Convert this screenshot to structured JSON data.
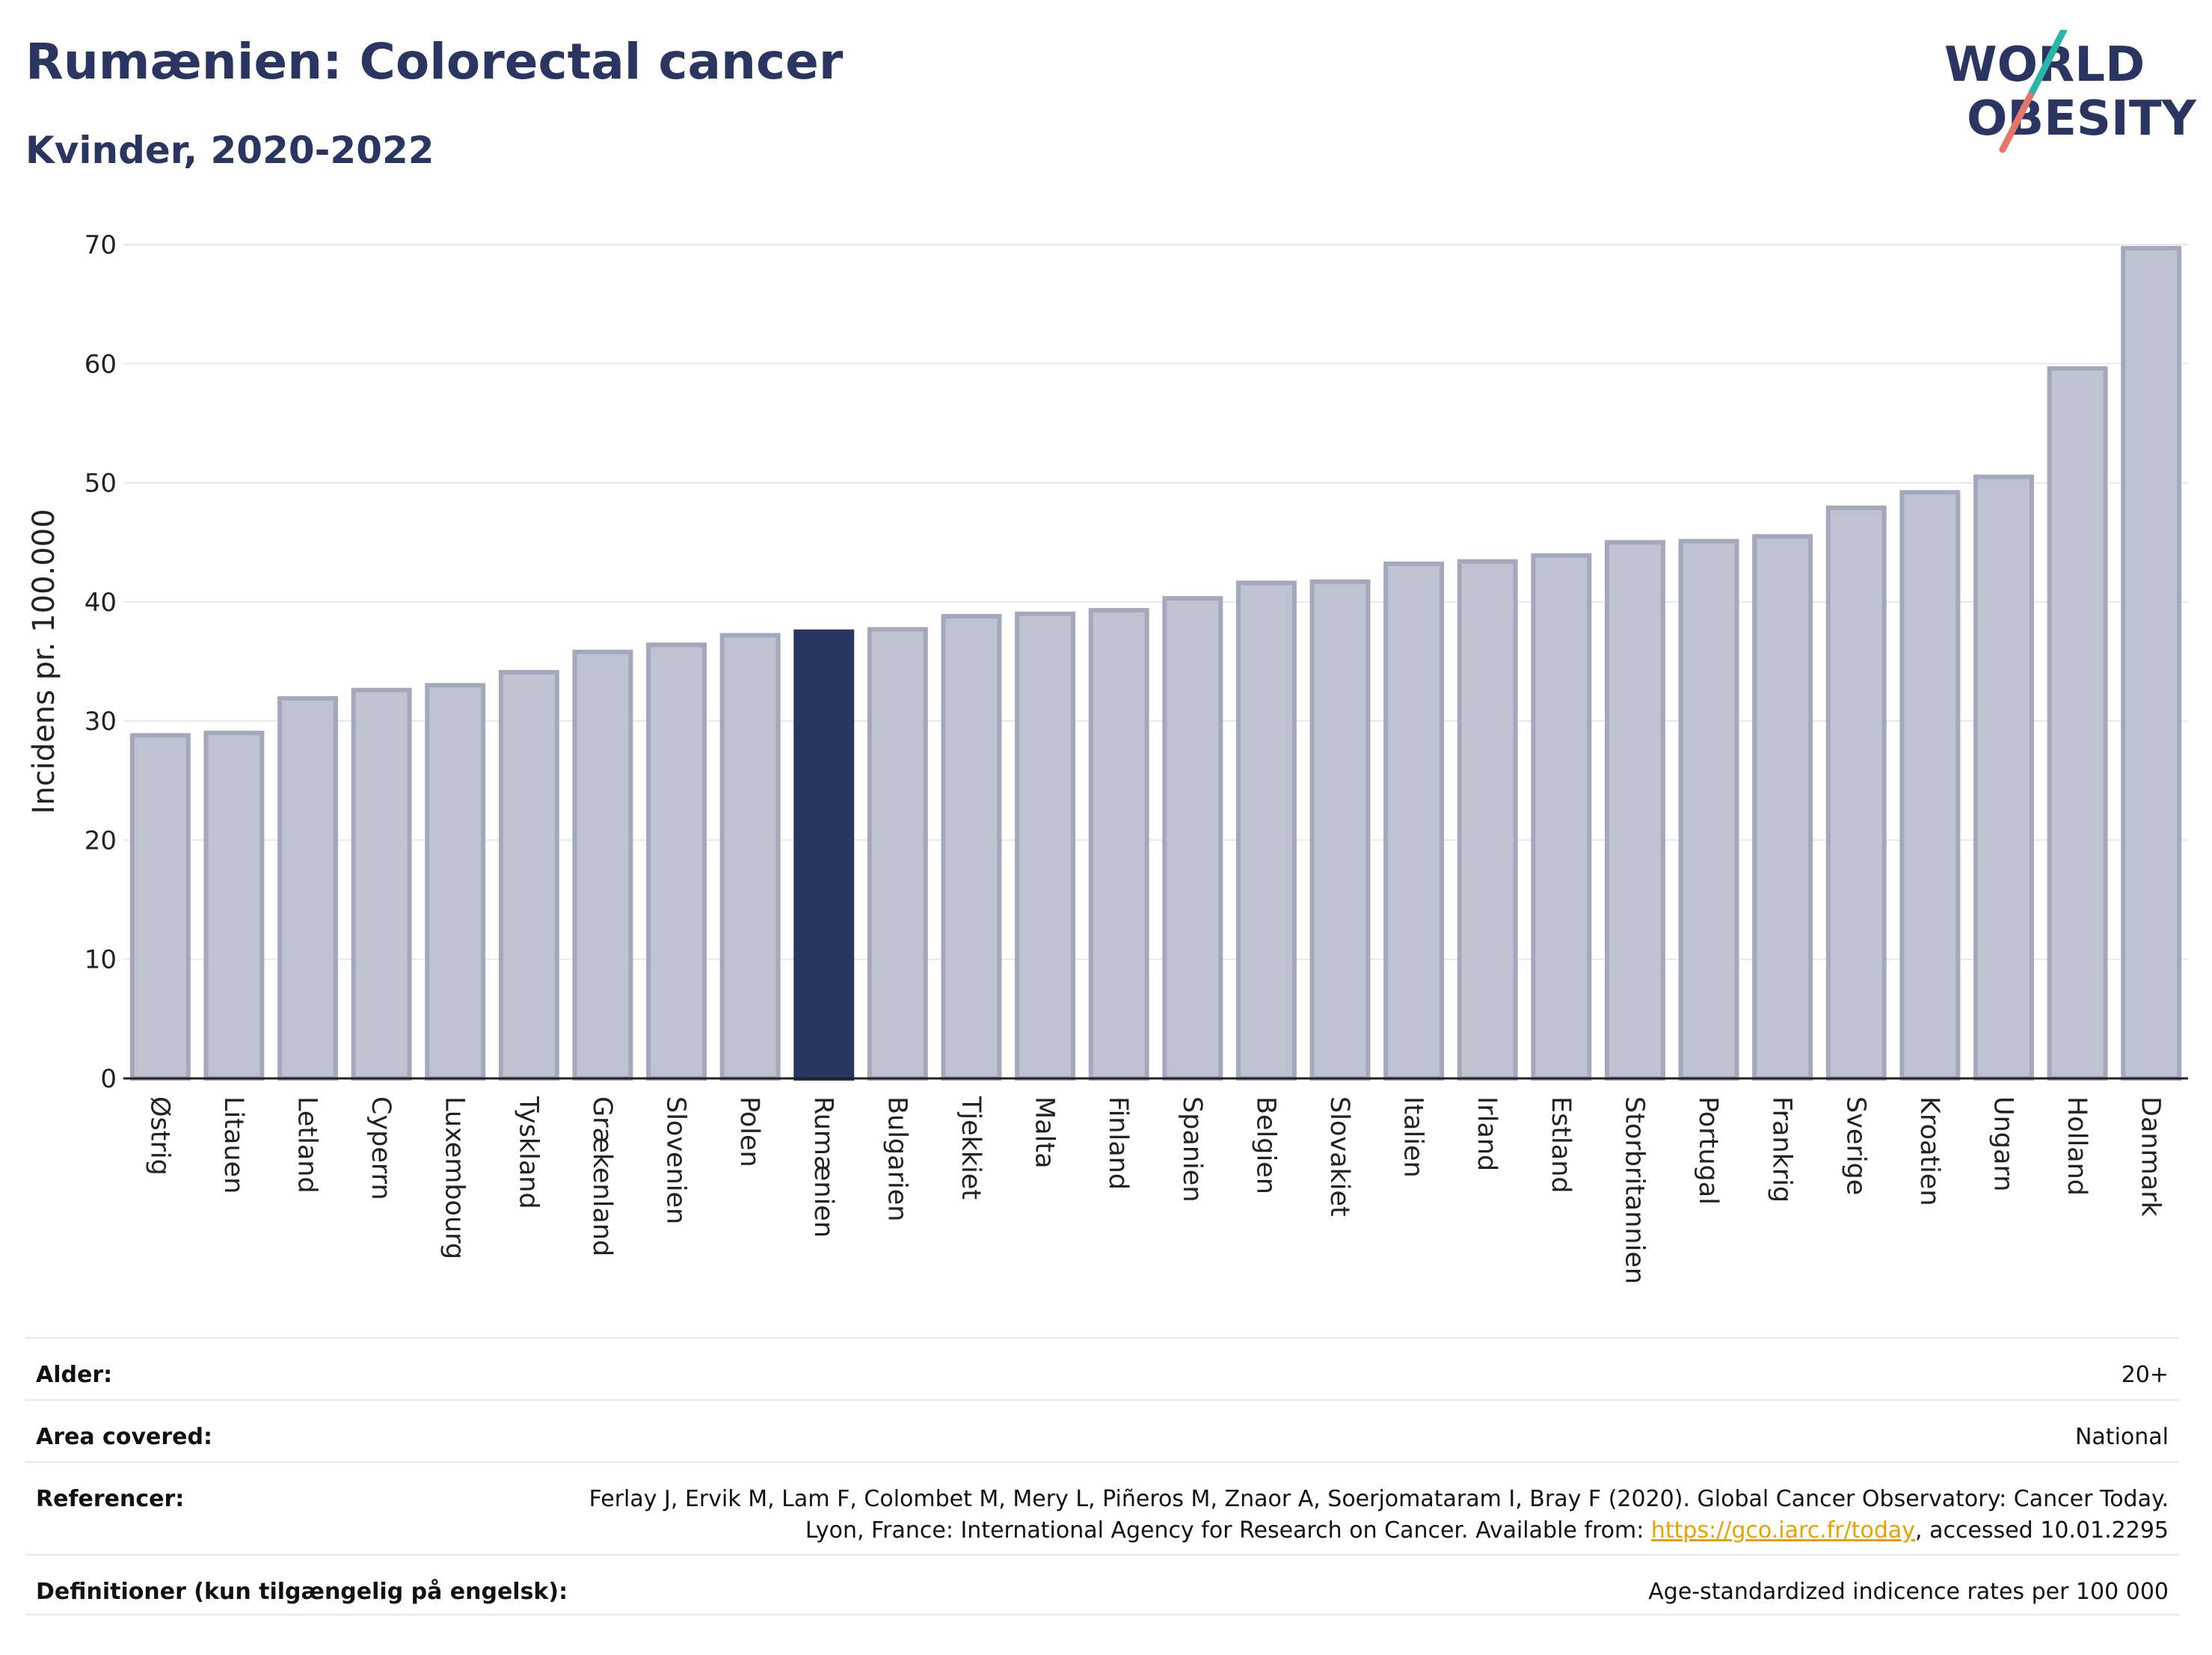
{
  "header": {
    "title": "Rumænien: Colorectal cancer",
    "subtitle": "Kvinder, 2020-2022"
  },
  "logo": {
    "line1": "WORLD",
    "line2": "OBESITY",
    "text_color": "#2b3561",
    "accent_teal": "#2bb5a8",
    "accent_coral": "#e8756a"
  },
  "colors": {
    "bar_default": "#bfc2d0",
    "bar_default_stroke": "#a3a8bd",
    "bar_highlight": "#2b3561",
    "grid": "#e6e8ef"
  },
  "chart_data": {
    "type": "bar",
    "ylabel": "Incidens pr. 100.000",
    "xlabel": "",
    "ylim": [
      0,
      70
    ],
    "yticks": [
      0,
      10,
      20,
      30,
      40,
      50,
      60,
      70
    ],
    "grid": true,
    "highlight": "Rumænien",
    "categories": [
      "Østrig",
      "Litauen",
      "Letland",
      "Cyperrn",
      "Luxembourg",
      "Tyskland",
      "Grækenland",
      "Slovenien",
      "Polen",
      "Rumænien",
      "Bulgarien",
      "Tjekkiet",
      "Malta",
      "Finland",
      "Spanien",
      "Belgien",
      "Slovakiet",
      "Italien",
      "Irland",
      "Estland",
      "Storbritannien",
      "Portugal",
      "Frankrig",
      "Sverige",
      "Kroatien",
      "Ungarn",
      "Holland",
      "Danmark"
    ],
    "values": [
      28.8,
      29.0,
      31.9,
      32.6,
      33.0,
      34.1,
      35.8,
      36.4,
      37.2,
      37.5,
      37.7,
      38.8,
      39.0,
      39.3,
      40.3,
      41.6,
      41.7,
      43.2,
      43.4,
      43.9,
      45.0,
      45.1,
      45.5,
      47.9,
      49.2,
      50.5,
      59.6,
      69.7
    ]
  },
  "meta": {
    "rows": [
      {
        "label": "Alder:",
        "value": "20+"
      },
      {
        "label": "Area covered:",
        "value": "National"
      },
      {
        "label": "Referencer:",
        "value_pre": "Ferlay J, Ervik M, Lam F, Colombet M, Mery L, Piñeros M, Znaor A, Soerjomataram I, Bray F (2020). Global Cancer Observatory: Cancer Today. Lyon, France: International Agency for Research on Cancer. Available from: ",
        "link": "https://gco.iarc.fr/today",
        "value_post": ", accessed 10.01.2295"
      },
      {
        "label": "Definitioner (kun tilgængelig på engelsk):",
        "value": "Age-standardized indicence rates per 100 000"
      }
    ]
  }
}
